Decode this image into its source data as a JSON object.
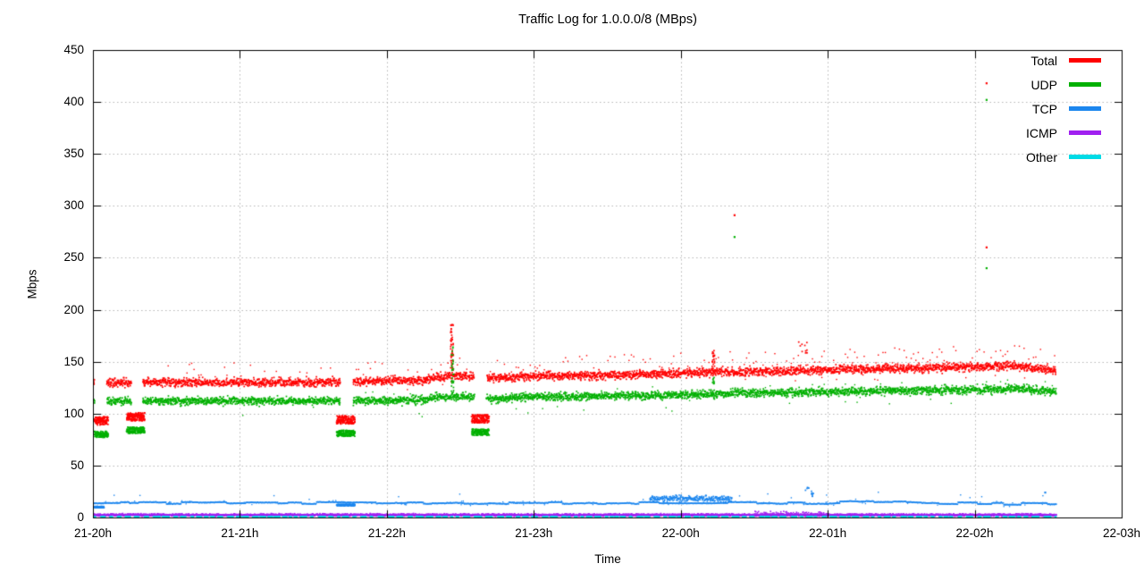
{
  "chart_data": {
    "type": "scatter",
    "title": "Traffic Log for 1.0.0.0/8 (MBps)",
    "xlabel": "Time",
    "ylabel": "Mbps",
    "ylim": [
      0,
      450
    ],
    "yticks": [
      0,
      50,
      100,
      150,
      200,
      250,
      300,
      350,
      400,
      450
    ],
    "xticks": [
      {
        "t": 20,
        "label": "21-20h"
      },
      {
        "t": 21,
        "label": "21-21h"
      },
      {
        "t": 22,
        "label": "21-22h"
      },
      {
        "t": 23,
        "label": "21-23h"
      },
      {
        "t": 24,
        "label": "22-00h"
      },
      {
        "t": 25,
        "label": "22-01h"
      },
      {
        "t": 26,
        "label": "22-02h"
      },
      {
        "t": 27,
        "label": "22-03h"
      }
    ],
    "x_domain_hours": [
      20,
      27
    ],
    "data_end_hour": 26.556,
    "grid": true,
    "legend_position": "top-right",
    "colors": {
      "grid": "#b5b5b5",
      "axis": "#000000",
      "text": "#000000",
      "background": "#ffffff"
    },
    "series": [
      {
        "name": "Total",
        "color": "#ff0000",
        "style": "band",
        "spread": 2.0,
        "keyframes": [
          [
            20.0,
            130
          ],
          [
            21.0,
            130
          ],
          [
            21.6,
            130
          ],
          [
            21.8,
            131
          ],
          [
            22.25,
            132
          ],
          [
            22.35,
            136
          ],
          [
            22.57,
            136
          ],
          [
            22.7,
            134
          ],
          [
            23.0,
            136
          ],
          [
            23.5,
            137
          ],
          [
            24.0,
            139
          ],
          [
            24.3,
            140
          ],
          [
            24.7,
            141
          ],
          [
            25.0,
            142
          ],
          [
            25.3,
            143
          ],
          [
            25.7,
            144
          ],
          [
            26.0,
            145
          ],
          [
            26.25,
            146
          ],
          [
            26.4,
            144
          ],
          [
            26.556,
            141
          ]
        ],
        "gaps": [
          [
            20.012,
            20.095
          ],
          [
            20.262,
            20.338
          ],
          [
            21.685,
            21.77
          ],
          [
            22.595,
            22.68
          ]
        ],
        "dips": [
          {
            "t": [
              20.012,
              20.103
            ],
            "v": 93,
            "s": 4
          },
          {
            "t": [
              20.231,
              20.353
            ],
            "v": 97,
            "s": 4
          },
          {
            "t": [
              21.66,
              21.782
            ],
            "v": 94,
            "s": 4
          },
          {
            "t": [
              22.579,
              22.694
            ],
            "v": 95,
            "s": 4
          }
        ],
        "spikes": [
          {
            "t": 22.443,
            "vmin": 140,
            "vmax": 186,
            "n": 44,
            "w": 0.01
          },
          {
            "t": 24.221,
            "vmin": 140,
            "vmax": 161,
            "n": 24,
            "w": 0.009
          },
          {
            "t": 24.83,
            "vmin": 158,
            "vmax": 172,
            "n": 10,
            "w": 0.03
          }
        ],
        "outliers": [
          [
            24.366,
            291
          ],
          [
            26.081,
            260
          ],
          [
            26.081,
            418
          ]
        ],
        "halo_above": {
          "dv": [
            5,
            20
          ],
          "p0": 0.2,
          "p1": 0.6
        },
        "halo_below": {
          "dv": [
            -11,
            -4
          ],
          "p": 0.05
        }
      },
      {
        "name": "UDP",
        "color": "#00b000",
        "style": "band",
        "spread": 1.9,
        "keyframes": [
          [
            20.0,
            112
          ],
          [
            21.6,
            112
          ],
          [
            21.8,
            112
          ],
          [
            22.25,
            113
          ],
          [
            22.35,
            116
          ],
          [
            22.57,
            116
          ],
          [
            22.7,
            114
          ],
          [
            23.0,
            116
          ],
          [
            23.5,
            117
          ],
          [
            24.0,
            118
          ],
          [
            24.5,
            120
          ],
          [
            25.0,
            121
          ],
          [
            25.5,
            122
          ],
          [
            26.0,
            123
          ],
          [
            26.25,
            124
          ],
          [
            26.4,
            123
          ],
          [
            26.556,
            121
          ]
        ],
        "gaps": [
          [
            20.012,
            20.095
          ],
          [
            20.262,
            20.338
          ],
          [
            21.685,
            21.77
          ],
          [
            22.595,
            22.68
          ]
        ],
        "dips": [
          {
            "t": [
              20.012,
              20.103
            ],
            "v": 80,
            "s": 3
          },
          {
            "t": [
              20.231,
              20.353
            ],
            "v": 84,
            "s": 3
          },
          {
            "t": [
              21.66,
              21.782
            ],
            "v": 81,
            "s": 3
          },
          {
            "t": [
              22.579,
              22.694
            ],
            "v": 82,
            "s": 3
          }
        ],
        "spikes": [
          {
            "t": 22.447,
            "vmin": 120,
            "vmax": 166,
            "n": 30,
            "w": 0.008
          },
          {
            "t": 24.221,
            "vmin": 118,
            "vmax": 136,
            "n": 12,
            "w": 0.007
          }
        ],
        "outliers": [
          [
            24.366,
            270
          ],
          [
            26.081,
            240
          ],
          [
            26.081,
            402
          ]
        ],
        "halo_above": {
          "dv": [
            4,
            9
          ],
          "p0": 0.04,
          "p1": 0.08
        },
        "halo_below": {
          "dv": [
            -16,
            -5
          ],
          "p": 0.07
        }
      },
      {
        "name": "TCP",
        "color": "#1c86ee",
        "style": "steppedline",
        "spread": 0.55,
        "keyframes": [
          [
            20.0,
            14
          ],
          [
            21.0,
            14
          ],
          [
            22.0,
            14
          ],
          [
            23.0,
            14
          ],
          [
            24.4,
            14
          ],
          [
            25.0,
            14
          ],
          [
            25.15,
            15.3
          ],
          [
            25.55,
            15.3
          ],
          [
            25.7,
            14
          ],
          [
            26.2,
            13.2
          ],
          [
            26.556,
            13
          ]
        ],
        "gaps": [],
        "dips": [
          {
            "t": [
              20.012,
              20.075
            ],
            "v": 10,
            "s": 0.7
          },
          {
            "t": [
              21.66,
              21.782
            ],
            "v": 12,
            "s": 0.6
          }
        ],
        "clouds": [
          {
            "t": [
              23.79,
              24.35
            ],
            "v": 18,
            "s": 1.4,
            "dots": 2
          }
        ],
        "spikes": [
          {
            "t": 24.86,
            "vmin": 25,
            "vmax": 30,
            "n": 5,
            "w": 0.012
          },
          {
            "t": 24.895,
            "vmin": 18,
            "vmax": 26,
            "n": 8,
            "w": 0.008
          }
        ],
        "outliers": [
          [
            26.48,
            24
          ]
        ],
        "halo_above": {
          "dv": [
            3,
            9
          ],
          "p0": 0.02,
          "p1": 0.05
        }
      },
      {
        "name": "ICMP",
        "color": "#a020f0",
        "style": "band",
        "spread": 0.55,
        "keyframes": [
          [
            20.0,
            2.4
          ],
          [
            26.556,
            2.4
          ]
        ],
        "gaps": [],
        "clouds": [
          {
            "t": [
              24.5,
              25.0
            ],
            "v": 3.4,
            "s": 1.0,
            "dots": 1
          }
        ]
      },
      {
        "name": "Other",
        "color": "#00dbe6",
        "style": "dash",
        "spread": 0.35,
        "keyframes": [
          [
            20.0,
            0.8
          ],
          [
            26.556,
            0.8
          ]
        ],
        "gaps": []
      }
    ]
  }
}
